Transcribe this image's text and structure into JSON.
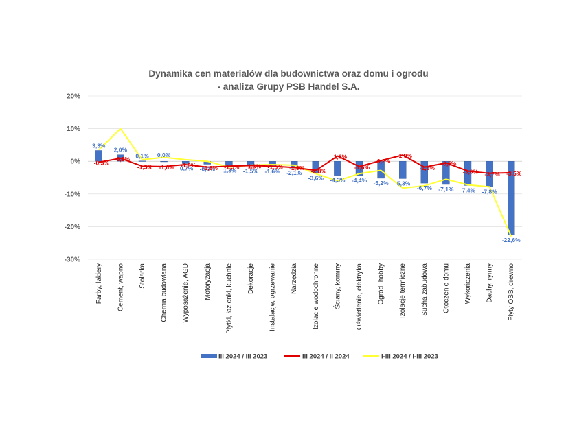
{
  "colors": {
    "bar": "#4472C4",
    "bar_dark": "#2F5597",
    "line_m_m": "#E00000",
    "line_ytd": "#FFFF33",
    "gridline": "#D9D9D9"
  },
  "chart_data": {
    "type": "bar",
    "title_line1": "Dynamika cen materiałów dla budownictwa oraz domu i ogrodu",
    "title_line2": "- analiza Grupy PSB Handel S.A.",
    "ylim": [
      -30,
      20
    ],
    "yticks": [
      "20%",
      "10%",
      "0%",
      "-10%",
      "-20%",
      "-30%"
    ],
    "ytick_values": [
      20,
      10,
      0,
      -10,
      -20,
      -30
    ],
    "legend_position": "bottom",
    "categories": [
      "Farby, lakiery",
      "Cement, wapno",
      "Stolarka",
      "Chemia budowlana",
      "Wyposażenie, AGD",
      "Motoryzacja",
      "Płytki, łazienki, kuchnie",
      "Dekoracje",
      "Instalacje, ogrzewanie",
      "Narzędzia",
      "Izolacje wodochronne",
      "Ściany, kominy",
      "Oświetlenie, elektryka",
      "Ogród, hobby",
      "Izolacje termiczne",
      "Sucha zabudowa",
      "Otoczenie domu",
      "Wykończenia",
      "Dachy, rynny",
      "Płyty OSB, drewno"
    ],
    "series": [
      {
        "name": "III 2024 / III 2023",
        "kind": "bar",
        "values": [
          3.3,
          2.0,
          0.1,
          0.0,
          -0.7,
          -0.9,
          -1.3,
          -1.5,
          -1.6,
          -2.1,
          -3.6,
          -4.3,
          -4.4,
          -5.2,
          -5.3,
          -6.7,
          -7.1,
          -7.4,
          -7.8,
          -22.6
        ],
        "labels": [
          "3,3%",
          "2,0%",
          "0,1%",
          "0,0%",
          "-0,7%",
          "-0,9%",
          "-1,3%",
          "-1,5%",
          "-1,6%",
          "-2,1%",
          "-3,6%",
          "-4,3%",
          "-4,4%",
          "-5,2%",
          "-5,3%",
          "-6,7%",
          "-7,1%",
          "-7,4%",
          "-7,8%",
          "-22,6%"
        ]
      },
      {
        "name": "III 2024 / II 2024",
        "kind": "line",
        "values": [
          -0.3,
          0.9,
          -1.5,
          -1.6,
          -1.0,
          -1.8,
          -1.5,
          -1.3,
          -1.5,
          -1.9,
          -2.8,
          1.6,
          -1.6,
          0.2,
          1.9,
          -1.8,
          -0.5,
          -3.0,
          -3.7,
          -3.5
        ],
        "labels": [
          "-0,3%",
          "0,9%",
          "-1,5%",
          "-1,6%",
          "-1,0%",
          "-1,8%",
          "-1,5%",
          "-1,3%",
          "-1,5%",
          "-1,9%",
          "-2,8%",
          "1,6%",
          "-1,6%",
          "0,2%",
          "1,9%",
          "-1,8%",
          "-0,5%",
          "-3,0%",
          "-3,7%",
          "-3,5%"
        ]
      },
      {
        "name": "I-III 2024 / I-III 2023",
        "kind": "line",
        "values": [
          3.5,
          10.0,
          0.5,
          1.2,
          0.5,
          0.0,
          -1.8,
          -1.2,
          -1.0,
          -1.2,
          -3.8,
          -6.0,
          -3.8,
          -2.8,
          -8.2,
          -7.5,
          -5.5,
          -7.2,
          -7.8,
          -23.0
        ]
      }
    ]
  }
}
